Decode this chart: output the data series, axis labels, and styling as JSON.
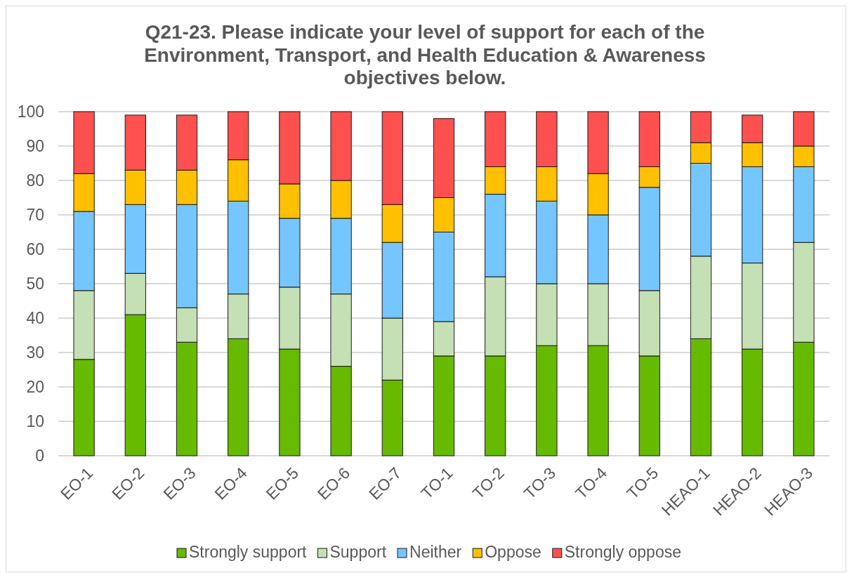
{
  "chart_data": {
    "type": "bar",
    "stacked": true,
    "title": "Q21-23. Please indicate your level of support for each of the Environment, Transport, and Health Education & Awareness objectives below.",
    "categories": [
      "EO-1",
      "EO-2",
      "EO-3",
      "EO-4",
      "EO-5",
      "EO-6",
      "EO-7",
      "TO-1",
      "TO-2",
      "TO-3",
      "TO-4",
      "TO-5",
      "HEAO-1",
      "HEAO-2",
      "HEAO-3"
    ],
    "series": [
      {
        "name": "Strongly support",
        "color": "#66bb00",
        "values": [
          28,
          41,
          33,
          34,
          31,
          26,
          22,
          29,
          29,
          32,
          32,
          29,
          34,
          31,
          33
        ]
      },
      {
        "name": "Support",
        "color": "#c5e0b4",
        "values": [
          20,
          12,
          10,
          13,
          18,
          21,
          18,
          10,
          23,
          18,
          18,
          19,
          24,
          25,
          29
        ]
      },
      {
        "name": "Neither",
        "color": "#75c6ff",
        "values": [
          23,
          20,
          30,
          27,
          20,
          22,
          22,
          26,
          24,
          24,
          20,
          30,
          27,
          28,
          22
        ]
      },
      {
        "name": "Oppose",
        "color": "#ffc000",
        "values": [
          11,
          10,
          10,
          12,
          10,
          11,
          11,
          10,
          8,
          10,
          12,
          6,
          6,
          7,
          6
        ]
      },
      {
        "name": "Strongly oppose",
        "color": "#ff5050",
        "values": [
          18,
          16,
          16,
          14,
          21,
          20,
          27,
          23,
          16,
          16,
          18,
          16,
          9,
          8,
          10
        ]
      }
    ],
    "ylim": [
      0,
      100
    ],
    "yticks": [
      0,
      10,
      20,
      30,
      40,
      50,
      60,
      70,
      80,
      90,
      100
    ],
    "grid": "y",
    "legend": "bottom"
  }
}
